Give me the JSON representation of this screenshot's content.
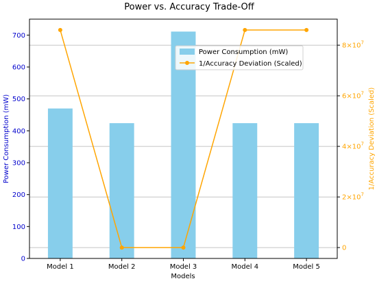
{
  "chart_data": {
    "type": "bar",
    "title": "Power vs. Accuracy Trade-Off",
    "xlabel": "Models",
    "ylabel_left": "Power Consumption (mW)",
    "ylabel_right": "1/Accuracy Deviation (Scaled)",
    "categories": [
      "Model 1",
      "Model 2",
      "Model 3",
      "Model 4",
      "Model 5"
    ],
    "series": [
      {
        "name": "Power Consumption (mW)",
        "type": "bar",
        "axis": "left",
        "color": "#87ceeb",
        "values": [
          470,
          424,
          711,
          424,
          424
        ]
      },
      {
        "name": "1/Accuracy Deviation (Scaled)",
        "type": "line",
        "axis": "right",
        "color": "#ffa500",
        "values": [
          86000000,
          0,
          0,
          86000000,
          86000000
        ]
      }
    ],
    "ylim_left": [
      0,
      750
    ],
    "ylim_right": [
      -4300000,
      90300000
    ],
    "yticks_left": [
      "0",
      "100",
      "200",
      "300",
      "400",
      "500",
      "600",
      "700"
    ],
    "yticks_right": [
      {
        "value": 0,
        "base": "0",
        "exp": ""
      },
      {
        "value": 20000000,
        "base": "2×10",
        "exp": "7"
      },
      {
        "value": 40000000,
        "base": "4×10",
        "exp": "7"
      },
      {
        "value": 60000000,
        "base": "6×10",
        "exp": "7"
      },
      {
        "value": 80000000,
        "base": "8×10",
        "exp": "7"
      }
    ],
    "grid": "horizontal (right axis)",
    "legend_position": "upper-right"
  }
}
